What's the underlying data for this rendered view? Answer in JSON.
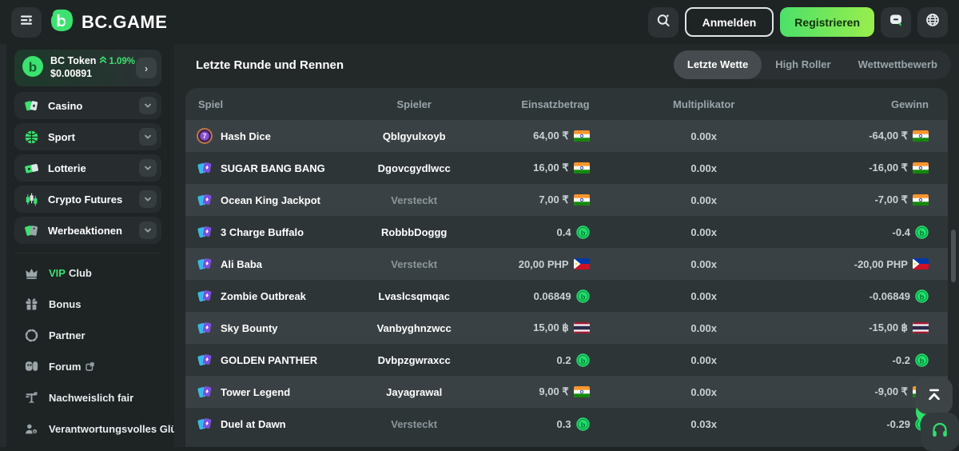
{
  "topbar": {
    "logo": "BC.GAME",
    "login_label": "Anmelden",
    "register_label": "Registrieren"
  },
  "sidebar": {
    "token": {
      "name": "BC Token",
      "change": "1.09%",
      "price": "$0.00891"
    },
    "menu": [
      {
        "label": "Casino",
        "icon": "cards-icon"
      },
      {
        "label": "Sport",
        "icon": "basketball-icon"
      },
      {
        "label": "Lotterie",
        "icon": "ticket-icon"
      },
      {
        "label": "Crypto Futures",
        "icon": "candles-icon"
      },
      {
        "label": "Werbeaktionen",
        "icon": "tags-icon"
      }
    ],
    "links": [
      {
        "accent": "VIP",
        "label": "Club",
        "icon": "crown-icon"
      },
      {
        "label": "Bonus",
        "icon": "gift-icon"
      },
      {
        "label": "Partner",
        "icon": "partner-icon"
      },
      {
        "label": "Forum",
        "icon": "forum-icon",
        "external": true
      },
      {
        "label": "Nachweislich fair",
        "icon": "fairness-icon"
      },
      {
        "label": "Verantwortungsvolles Glü",
        "icon": "responsible-icon"
      }
    ]
  },
  "main": {
    "heading": "Letzte Runde und Rennen",
    "tabs": [
      {
        "label": "Letzte Wette",
        "active": true
      },
      {
        "label": "High Roller",
        "active": false
      },
      {
        "label": "Wettwettbewerb",
        "active": false
      }
    ],
    "table": {
      "columns": [
        "Spiel",
        "Spieler",
        "Einsatzbetrag",
        "Multiplikator",
        "Gewinn"
      ],
      "rows": [
        {
          "game": "Hash Dice",
          "icon": "hash-dice-icon",
          "player": "Qblgyulxoyb",
          "hidden": false,
          "bet": "64,00 ₹",
          "bet_icon": "flag-india",
          "mult": "0.00x",
          "win": "-64,00 ₹",
          "win_icon": "flag-india"
        },
        {
          "game": "SUGAR BANG BANG",
          "icon": "slots-icon",
          "player": "Dgovcgydlwcc",
          "hidden": false,
          "bet": "16,00 ₹",
          "bet_icon": "flag-india",
          "mult": "0.00x",
          "win": "-16,00 ₹",
          "win_icon": "flag-india"
        },
        {
          "game": "Ocean King Jackpot",
          "icon": "slots-icon",
          "player": "Versteckt",
          "hidden": true,
          "bet": "7,00 ₹",
          "bet_icon": "flag-india",
          "mult": "0.00x",
          "win": "-7,00 ₹",
          "win_icon": "flag-india"
        },
        {
          "game": "3 Charge Buffalo",
          "icon": "slots-icon",
          "player": "RobbbDoggg",
          "hidden": false,
          "bet": "0.4",
          "bet_icon": "bc-coin",
          "mult": "0.00x",
          "win": "-0.4",
          "win_icon": "bc-coin"
        },
        {
          "game": "Ali Baba",
          "icon": "slots-icon",
          "player": "Versteckt",
          "hidden": true,
          "bet": "20,00 PHP",
          "bet_icon": "flag-philippines",
          "mult": "0.00x",
          "win": "-20,00 PHP",
          "win_icon": "flag-philippines"
        },
        {
          "game": "Zombie Outbreak",
          "icon": "slots-icon",
          "player": "Lvaslcsqmqac",
          "hidden": false,
          "bet": "0.06849",
          "bet_icon": "bc-coin",
          "mult": "0.00x",
          "win": "-0.06849",
          "win_icon": "bc-coin"
        },
        {
          "game": "Sky Bounty",
          "icon": "slots-icon",
          "player": "Vanbyghnzwcc",
          "hidden": false,
          "bet": "15,00 ฿",
          "bet_icon": "flag-thailand",
          "mult": "0.00x",
          "win": "-15,00 ฿",
          "win_icon": "flag-thailand"
        },
        {
          "game": "GOLDEN PANTHER",
          "icon": "slots-icon",
          "player": "Dvbpzgwraxcc",
          "hidden": false,
          "bet": "0.2",
          "bet_icon": "bc-coin",
          "mult": "0.00x",
          "win": "-0.2",
          "win_icon": "bc-coin"
        },
        {
          "game": "Tower Legend",
          "icon": "slots-icon",
          "player": "Jayagrawal",
          "hidden": false,
          "bet": "9,00 ₹",
          "bet_icon": "flag-india",
          "mult": "0.00x",
          "win": "-9,00 ₹",
          "win_icon": "flag-india"
        },
        {
          "game": "Duel at Dawn",
          "icon": "slots-icon",
          "player": "Versteckt",
          "hidden": true,
          "bet": "0.3",
          "bet_icon": "bc-coin",
          "mult": "0.03x",
          "win": "-0.29",
          "win_icon": "bc-coin"
        }
      ]
    }
  },
  "colors": {
    "accent_green": "#3be26f",
    "register_gradient": [
      "#4ce069",
      "#99ee4d"
    ],
    "panel_bg": "#2e3537",
    "row_light_bg": "#3a4144",
    "page_bg": "#1e2324"
  }
}
